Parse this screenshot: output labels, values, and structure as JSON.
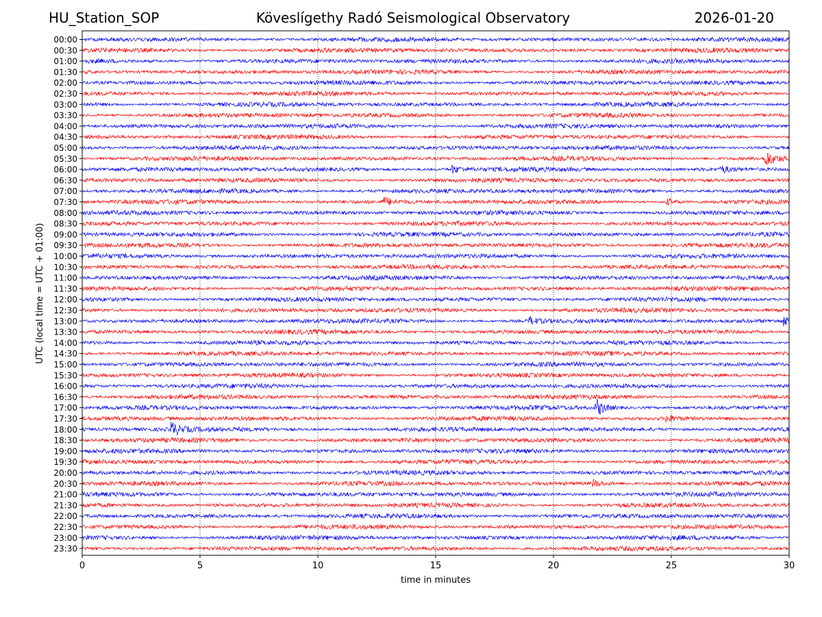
{
  "header": {
    "station": "HU_Station_SOP",
    "title": "Köveslígethy Radó Seismological Observatory",
    "date": "2026-01-20"
  },
  "chart_data": {
    "type": "line",
    "title": "Köveslígethy Radó Seismological Observatory",
    "xlabel": "time in minutes",
    "ylabel": "UTC (local time = UTC + 01:00)",
    "xlim": [
      0,
      30
    ],
    "xticks": [
      0,
      5,
      10,
      15,
      20,
      25,
      30
    ],
    "grid": "vertical dotted at x ticks",
    "trace_colors": [
      "#0000ff",
      "#ff0000"
    ],
    "rows": [
      "00:00",
      "00:30",
      "01:00",
      "01:30",
      "02:00",
      "02:30",
      "03:00",
      "03:30",
      "04:00",
      "04:30",
      "05:00",
      "05:30",
      "06:00",
      "06:30",
      "07:00",
      "07:30",
      "08:00",
      "08:30",
      "09:00",
      "09:30",
      "10:00",
      "10:30",
      "11:00",
      "11:30",
      "12:00",
      "12:30",
      "13:00",
      "13:30",
      "14:00",
      "14:30",
      "15:00",
      "15:30",
      "16:00",
      "16:30",
      "17:00",
      "17:30",
      "18:00",
      "18:30",
      "19:00",
      "19:30",
      "20:00",
      "20:30",
      "21:00",
      "21:30",
      "22:00",
      "22:30",
      "23:00",
      "23:30"
    ],
    "events": [
      {
        "row": "05:30",
        "minute": 29.0,
        "strength": 1.6
      },
      {
        "row": "06:00",
        "minute": 15.7,
        "strength": 0.8
      },
      {
        "row": "06:00",
        "minute": 27.1,
        "strength": 0.7
      },
      {
        "row": "07:30",
        "minute": 12.8,
        "strength": 0.8
      },
      {
        "row": "07:30",
        "minute": 24.8,
        "strength": 0.7
      },
      {
        "row": "13:00",
        "minute": 19.0,
        "strength": 0.7
      },
      {
        "row": "13:00",
        "minute": 29.8,
        "strength": 0.8
      },
      {
        "row": "17:00",
        "minute": 21.8,
        "strength": 1.8
      },
      {
        "row": "17:30",
        "minute": 24.8,
        "strength": 0.7
      },
      {
        "row": "18:00",
        "minute": 3.8,
        "strength": 1.4
      },
      {
        "row": "20:30",
        "minute": 21.7,
        "strength": 0.7
      }
    ]
  }
}
